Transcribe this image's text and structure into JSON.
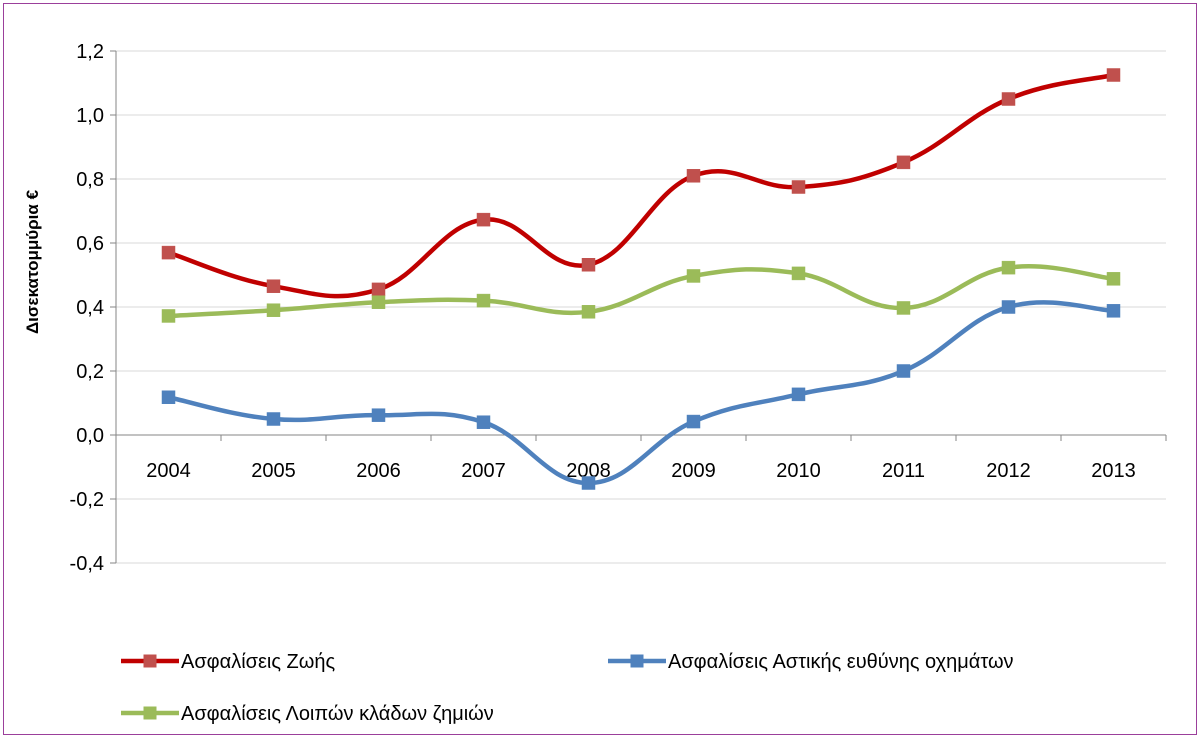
{
  "chart_data": {
    "type": "line",
    "title": "",
    "xlabel": "",
    "ylabel": "Δισεκατομμύρια €",
    "categories": [
      "2004",
      "2005",
      "2006",
      "2007",
      "2008",
      "2009",
      "2010",
      "2011",
      "2012",
      "2013"
    ],
    "ylim": [
      -0.4,
      1.2
    ],
    "yticks": [
      -0.4,
      -0.2,
      0.0,
      0.2,
      0.4,
      0.6,
      0.8,
      1.0,
      1.2
    ],
    "ytick_labels": [
      "-0,4",
      "-0,2",
      "0,0",
      "0,2",
      "0,4",
      "0,6",
      "0,8",
      "1,0",
      "1,2"
    ],
    "grid": "horizontal",
    "smooth": true,
    "legend_position": "bottom",
    "series": [
      {
        "name": "Ασφαλίσεις Ζωής",
        "color": "#c00000",
        "marker_color": "#c0504d",
        "values": [
          0.57,
          0.465,
          0.455,
          0.673,
          0.532,
          0.81,
          0.775,
          0.852,
          1.05,
          1.125
        ]
      },
      {
        "name": "Ασφαλίσεις Αστικής ευθύνης οχημάτων",
        "color": "#4f81bd",
        "marker_color": "#4f81bd",
        "values": [
          0.118,
          0.05,
          0.062,
          0.04,
          -0.15,
          0.042,
          0.127,
          0.2,
          0.4,
          0.388
        ]
      },
      {
        "name": "Ασφαλίσεις Λοιπών κλάδων ζημιών",
        "color": "#9bbb59",
        "marker_color": "#9bbb59",
        "values": [
          0.372,
          0.39,
          0.415,
          0.42,
          0.385,
          0.497,
          0.505,
          0.397,
          0.523,
          0.488
        ]
      }
    ]
  }
}
